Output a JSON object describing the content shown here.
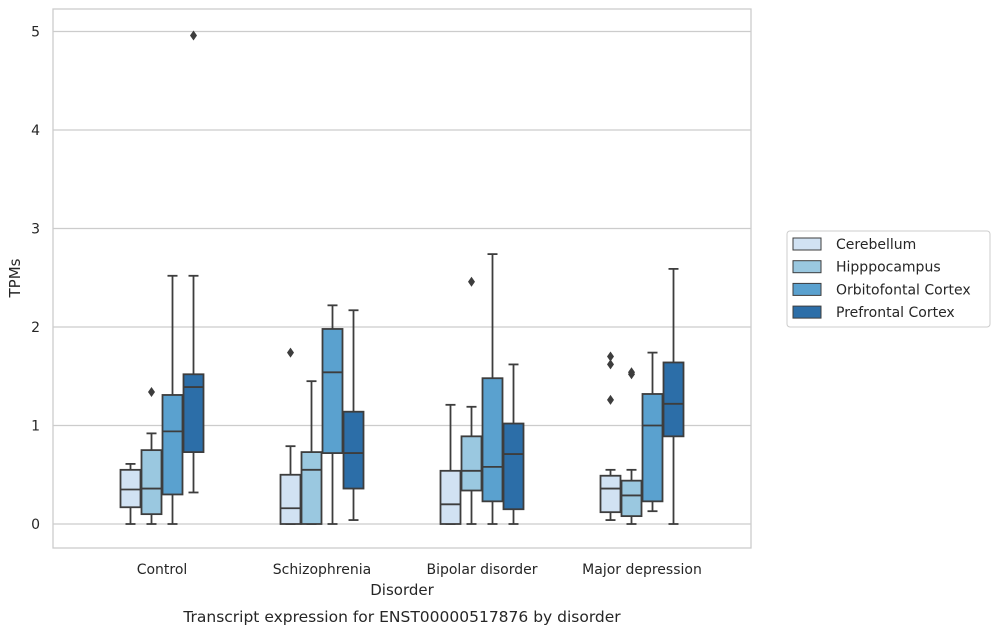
{
  "caption": "Transcript expression for ENST00000517876 by disorder",
  "chart_data": {
    "type": "box",
    "xlabel": "Disorder",
    "ylabel": "TPMs",
    "ylim": [
      -0.25,
      5.22
    ],
    "yticks": [
      "0",
      "1",
      "2",
      "3",
      "4",
      "5"
    ],
    "grid": true,
    "legend_position": "right",
    "categories": [
      "Control",
      "Schizophrenia",
      "Bipolar disorder",
      "Major depression"
    ],
    "series": [
      {
        "name": "Cerebellum",
        "color": "#d1e2f3",
        "boxes": [
          {
            "whislo": 0.0,
            "q1": 0.17,
            "med": 0.35,
            "q3": 0.55,
            "whishi": 0.61,
            "fliers": []
          },
          {
            "whislo": 0.0,
            "q1": 0.0,
            "med": 0.16,
            "q3": 0.5,
            "whishi": 0.79,
            "fliers": [
              1.74
            ]
          },
          {
            "whislo": 0.0,
            "q1": 0.0,
            "med": 0.2,
            "q3": 0.54,
            "whishi": 1.21,
            "fliers": []
          },
          {
            "whislo": 0.04,
            "q1": 0.12,
            "med": 0.36,
            "q3": 0.49,
            "whishi": 0.55,
            "fliers": [
              1.26,
              1.62,
              1.7
            ]
          }
        ]
      },
      {
        "name": "Hipppocampus",
        "color": "#9ac8e0",
        "boxes": [
          {
            "whislo": 0.0,
            "q1": 0.1,
            "med": 0.36,
            "q3": 0.75,
            "whishi": 0.92,
            "fliers": [
              1.34
            ]
          },
          {
            "whislo": 0.0,
            "q1": 0.0,
            "med": 0.55,
            "q3": 0.73,
            "whishi": 1.45,
            "fliers": []
          },
          {
            "whislo": 0.0,
            "q1": 0.34,
            "med": 0.54,
            "q3": 0.89,
            "whishi": 1.19,
            "fliers": [
              2.46
            ]
          },
          {
            "whislo": 0.0,
            "q1": 0.08,
            "med": 0.29,
            "q3": 0.44,
            "whishi": 0.55,
            "fliers": [
              1.52,
              1.54
            ]
          }
        ]
      },
      {
        "name": "Orbitofontal Cortex",
        "color": "#5aa1cf",
        "boxes": [
          {
            "whislo": 0.0,
            "q1": 0.3,
            "med": 0.94,
            "q3": 1.31,
            "whishi": 2.52,
            "fliers": []
          },
          {
            "whislo": 0.0,
            "q1": 0.72,
            "med": 1.54,
            "q3": 1.98,
            "whishi": 2.22,
            "fliers": []
          },
          {
            "whislo": 0.0,
            "q1": 0.23,
            "med": 0.58,
            "q3": 1.48,
            "whishi": 2.74,
            "fliers": []
          },
          {
            "whislo": 0.13,
            "q1": 0.23,
            "med": 1.0,
            "q3": 1.32,
            "whishi": 1.74,
            "fliers": []
          }
        ]
      },
      {
        "name": "Prefrontal Cortex",
        "color": "#2c6ea8",
        "boxes": [
          {
            "whislo": 0.32,
            "q1": 0.73,
            "med": 1.39,
            "q3": 1.52,
            "whishi": 2.52,
            "fliers": [
              4.96
            ]
          },
          {
            "whislo": 0.04,
            "q1": 0.36,
            "med": 0.72,
            "q3": 1.14,
            "whishi": 2.17,
            "fliers": []
          },
          {
            "whislo": 0.0,
            "q1": 0.15,
            "med": 0.71,
            "q3": 1.02,
            "whishi": 1.62,
            "fliers": []
          },
          {
            "whislo": 0.0,
            "q1": 0.89,
            "med": 1.22,
            "q3": 1.64,
            "whishi": 2.59,
            "fliers": []
          }
        ]
      }
    ]
  }
}
